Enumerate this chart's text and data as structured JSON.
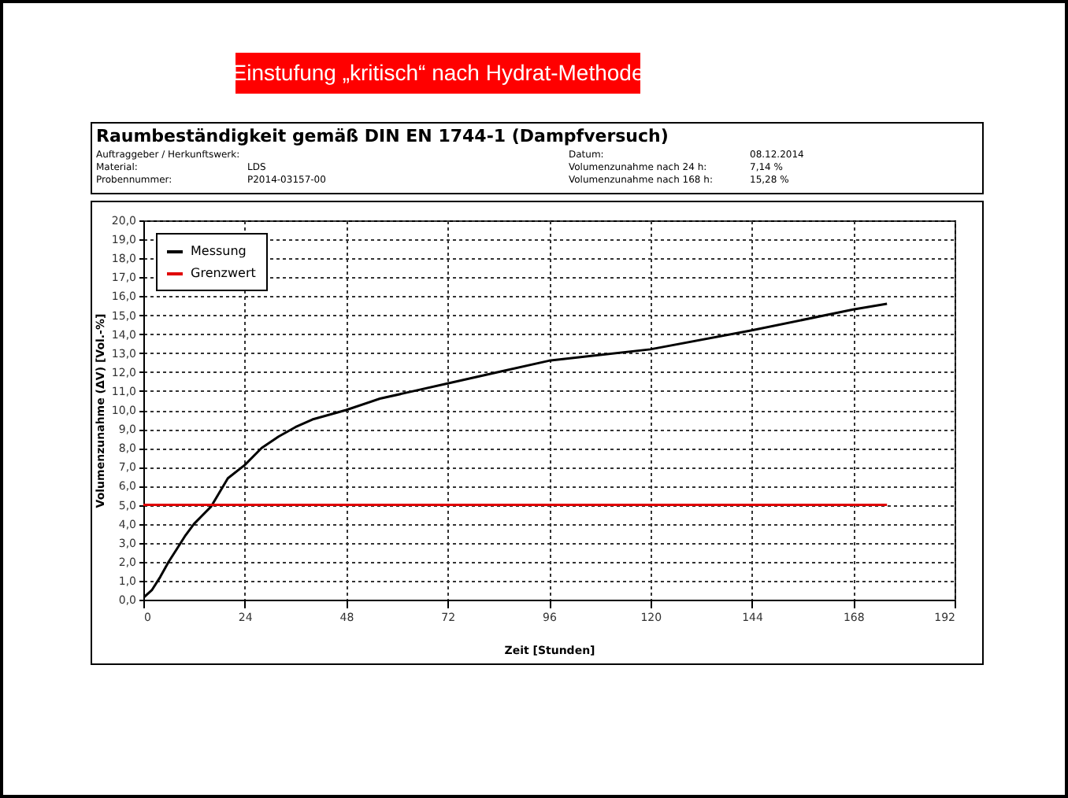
{
  "chart_data": {
    "type": "line",
    "title": "Einstufung „kritisch“ nach Hydrat-Methode",
    "subtitle": "Raumbeständigkeit gemäß DIN EN 1744-1 (Dampfversuch)",
    "annotations": [
      "Auftraggeber / Herkunftswerk:",
      "Material:",
      "LDS",
      "Probennummer:",
      "P2014-03157-00",
      "Datum:",
      "08.12.2014",
      "Volumenzunahme nach  24 h:",
      "7,14 %",
      "Volumenzunahme nach 168 h:",
      "15,28 %"
    ],
    "xlabel": "Zeit [Stunden]",
    "ylabel": "Volumenzunahme (ΔV) [Vol.-%]",
    "series": [
      {
        "name": "Messung",
        "color": "#000000",
        "x": [
          0,
          2,
          4,
          6,
          8,
          10,
          12,
          16,
          20,
          24,
          28,
          32,
          36,
          40,
          48,
          56,
          64,
          72,
          84,
          96,
          120,
          144,
          168,
          176
        ],
        "values": [
          0.1,
          0.5,
          1.2,
          2.0,
          2.7,
          3.4,
          4.0,
          4.9,
          6.4,
          7.1,
          8.0,
          8.6,
          9.1,
          9.5,
          10.0,
          10.6,
          11.0,
          11.4,
          12.0,
          12.6,
          13.2,
          14.2,
          15.3,
          15.6
        ]
      },
      {
        "name": "Grenzwert",
        "color": "#e00000",
        "x": [
          0,
          176
        ],
        "values": [
          5.0,
          5.0
        ]
      }
    ],
    "xlim": [
      0,
      192
    ],
    "xticks": [
      0,
      24,
      48,
      72,
      96,
      120,
      144,
      168,
      192
    ],
    "ylim": [
      0,
      20
    ],
    "yticks": [
      {
        "value": 0,
        "label": "0,0"
      },
      {
        "value": 1,
        "label": "1,0"
      },
      {
        "value": 2,
        "label": "2,0"
      },
      {
        "value": 3,
        "label": "3,0"
      },
      {
        "value": 4,
        "label": "4,0"
      },
      {
        "value": 5,
        "label": "5,0"
      },
      {
        "value": 6,
        "label": "6,0"
      },
      {
        "value": 7,
        "label": "7,0"
      },
      {
        "value": 8,
        "label": "8,0"
      },
      {
        "value": 9,
        "label": "9,0"
      },
      {
        "value": 10,
        "label": "10,0"
      },
      {
        "value": 11,
        "label": "11,0"
      },
      {
        "value": 12,
        "label": "12,0"
      },
      {
        "value": 13,
        "label": "13,0"
      },
      {
        "value": 14,
        "label": "14,0"
      },
      {
        "value": 15,
        "label": "15,0"
      },
      {
        "value": 16,
        "label": "16,0"
      },
      {
        "value": 17,
        "label": "17,0"
      },
      {
        "value": 18,
        "label": "18,0"
      },
      {
        "value": 19,
        "label": "19,0"
      },
      {
        "value": 20,
        "label": "20,0"
      }
    ],
    "grid": true,
    "legend": "top left",
    "marker": "none",
    "line_style": "solid"
  }
}
